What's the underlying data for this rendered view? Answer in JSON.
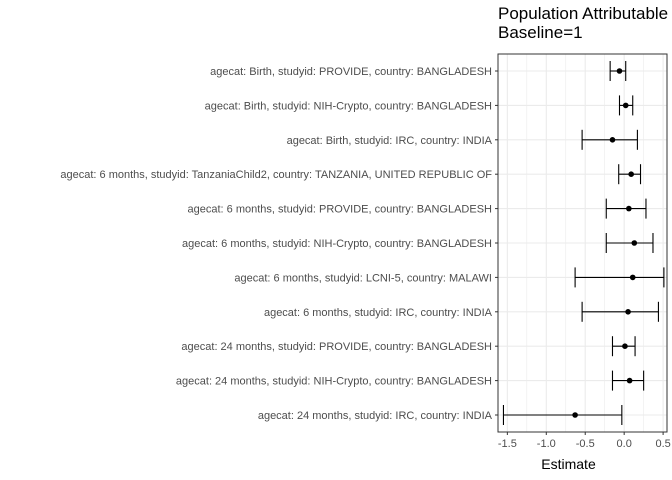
{
  "chart_data": {
    "type": "scatter",
    "title_lines": [
      "Population Attributable",
      "Baseline=1"
    ],
    "xlabel": "Estimate",
    "ylabel": "",
    "xlim": [
      -1.62,
      0.55
    ],
    "xticks": [
      -1.5,
      -1.0,
      -0.5,
      0.0,
      0.5
    ],
    "xtick_labels": [
      "-1.5",
      "-1.0",
      "-0.5",
      "0.0",
      "0.5"
    ],
    "grid": true,
    "categories": [
      "agecat: Birth, studyid: PROVIDE, country: BANGLADESH",
      "agecat: Birth, studyid: NIH-Crypto, country: BANGLADESH",
      "agecat: Birth, studyid: IRC, country: INDIA",
      "agecat: 6 months, studyid: TanzaniaChild2, country: TANZANIA, UNITED REPUBLIC OF",
      "agecat: 6 months, studyid: PROVIDE, country: BANGLADESH",
      "agecat: 6 months, studyid: NIH-Crypto, country: BANGLADESH",
      "agecat: 6 months, studyid: LCNI-5, country: MALAWI",
      "agecat: 6 months, studyid: IRC, country: INDIA",
      "agecat: 24 months, studyid: PROVIDE, country: BANGLADESH",
      "agecat: 24 months, studyid: NIH-Crypto, country: BANGLADESH",
      "agecat: 24 months, studyid: IRC, country: INDIA"
    ],
    "estimates": [
      -0.06,
      0.02,
      -0.15,
      0.09,
      0.06,
      0.13,
      0.11,
      0.05,
      0.01,
      0.07,
      -0.63
    ],
    "ci_lower": [
      -0.18,
      -0.06,
      -0.54,
      -0.07,
      -0.23,
      -0.23,
      -0.63,
      -0.54,
      -0.15,
      -0.15,
      -1.55
    ],
    "ci_upper": [
      0.02,
      0.11,
      0.17,
      0.21,
      0.28,
      0.37,
      0.51,
      0.44,
      0.14,
      0.25,
      -0.03
    ],
    "colors": {
      "point": "#000000",
      "grid": "#ebebeb",
      "panel_border": "#333333",
      "label": "#4d4d4d"
    }
  }
}
